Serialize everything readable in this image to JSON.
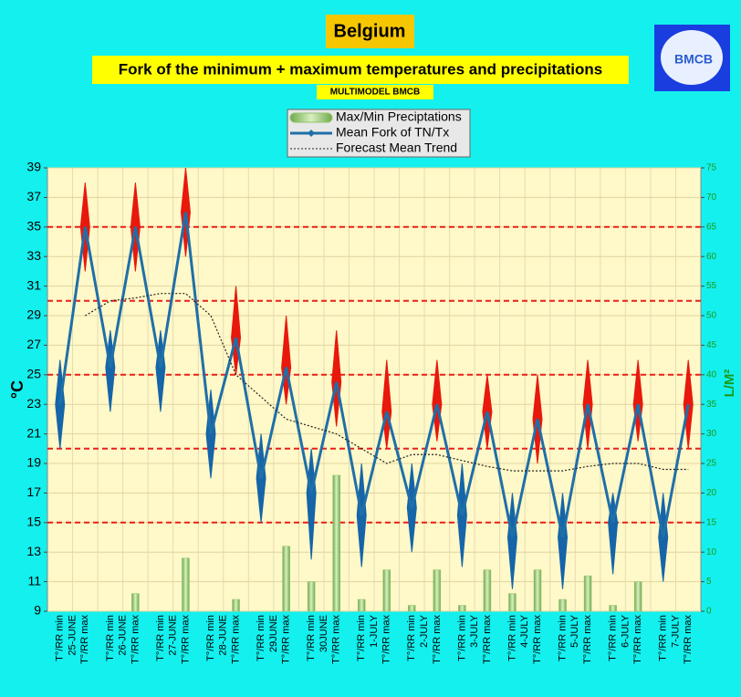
{
  "chart_data": {
    "type": "combo",
    "title": "Belgium",
    "subtitle": "Fork of the minimum + maximum temperatures and precipitations",
    "note": "MULTIMODEL BMCB",
    "logo": "BMCB",
    "ylabel": "°C",
    "y2label": "L/M²",
    "categories": [
      "T°/RR min",
      "T°/RR max",
      "T°/RR min",
      "T°/RR max",
      "T°/RR min",
      "T°/RR max",
      "T°/RR min",
      "T°/RR max",
      "T°/RR min",
      "T°/RR max",
      "T°/RR min",
      "T°/RR max",
      "T°/RR min",
      "T°/RR max",
      "T°/RR min",
      "T°/RR max",
      "T°/RR min",
      "T°/RR max",
      "T°/RR min",
      "T°/RR max",
      "T°/RR min",
      "T°/RR max",
      "T°/RR min",
      "T°/RR max",
      "T°/RR min",
      "T°/RR max"
    ],
    "dates": [
      "25-JUNE",
      "26-JUNE",
      "27-JUNE",
      "28-JUNE",
      "29JUNE",
      "30JUNE",
      "1-JULY",
      "2-JULY",
      "3-JULY",
      "4-JULY",
      "5-JULY",
      "6-JULY",
      "7-JULY"
    ],
    "ylim": [
      9,
      39
    ],
    "yticks": [
      9,
      11,
      13,
      15,
      17,
      19,
      21,
      23,
      25,
      27,
      29,
      31,
      33,
      35,
      37,
      39
    ],
    "y2lim": [
      0,
      75
    ],
    "y2ticks": [
      0,
      5,
      10,
      15,
      20,
      25,
      30,
      35,
      40,
      45,
      50,
      55,
      60,
      65,
      70,
      75
    ],
    "grid": true,
    "reference_lines": [
      15,
      20,
      25,
      30,
      35
    ],
    "reference_color": "#e8201a",
    "series": [
      {
        "name": "Max/Min Preciptations",
        "type": "bar",
        "axis": "y2",
        "color": "#8fc46a",
        "values": [
          0,
          0,
          0,
          3,
          0,
          9,
          0,
          2,
          0,
          11,
          5,
          23,
          2,
          7,
          1,
          7,
          1,
          7,
          3,
          7,
          2,
          6,
          1,
          5,
          0,
          0
        ]
      },
      {
        "name": "Mean Fork of TN/Tx",
        "type": "line",
        "color": "#1f6fa8",
        "values": [
          23,
          35,
          25.5,
          35,
          25.5,
          36,
          21,
          27.5,
          18,
          25.5,
          17,
          24.5,
          15.5,
          22.5,
          16,
          23,
          15.5,
          22.5,
          14,
          22,
          14,
          23,
          15,
          23,
          14,
          23
        ],
        "low": [
          20,
          32,
          22.5,
          32,
          22.5,
          33,
          18,
          25,
          15,
          23,
          12.5,
          21.5,
          12,
          20,
          13,
          20.5,
          12,
          20,
          10.5,
          19,
          10.5,
          20,
          11.5,
          20.5,
          11,
          20
        ],
        "high": [
          26,
          38,
          28,
          38,
          28,
          39,
          24,
          31,
          21,
          29,
          20,
          28,
          19,
          26,
          19,
          26,
          19,
          25,
          17,
          25,
          17,
          26,
          17,
          26,
          17,
          26
        ],
        "range_colors": [
          "#1565a8",
          "#e8180c"
        ]
      },
      {
        "name": "Forecast Mean Trend",
        "type": "trend",
        "color": "#222222",
        "values": [
          null,
          29,
          30,
          30.2,
          30.5,
          30.5,
          29,
          25,
          23.5,
          22,
          21.5,
          21,
          20,
          19,
          19.6,
          19.6,
          19.2,
          18.8,
          18.5,
          18.5,
          18.5,
          18.8,
          19,
          19,
          18.6,
          18.6
        ]
      }
    ]
  }
}
